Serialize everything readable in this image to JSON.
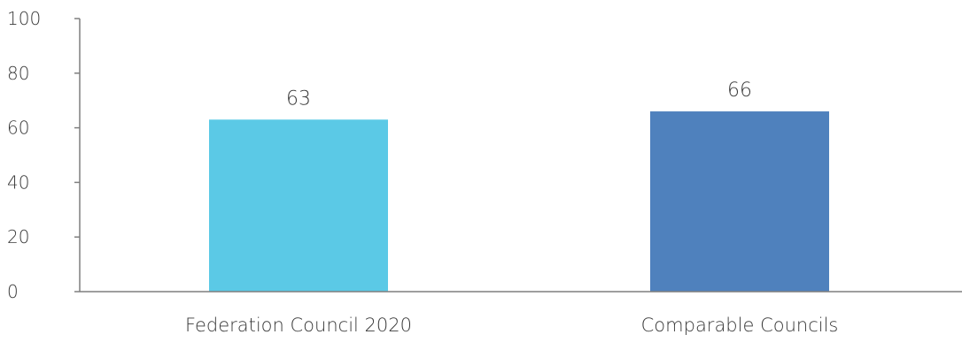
{
  "chart_data": {
    "type": "bar",
    "categories": [
      "Federation Council 2020",
      "Comparable Councils"
    ],
    "values": [
      63,
      66
    ],
    "colors": [
      "#5bc9e6",
      "#4f81bd"
    ],
    "title": "",
    "xlabel": "",
    "ylabel": "",
    "ylim": [
      0,
      100
    ],
    "yticks": [
      0,
      20,
      40,
      60,
      80,
      100
    ],
    "grid": false,
    "legend": "none",
    "data_labels": true
  }
}
